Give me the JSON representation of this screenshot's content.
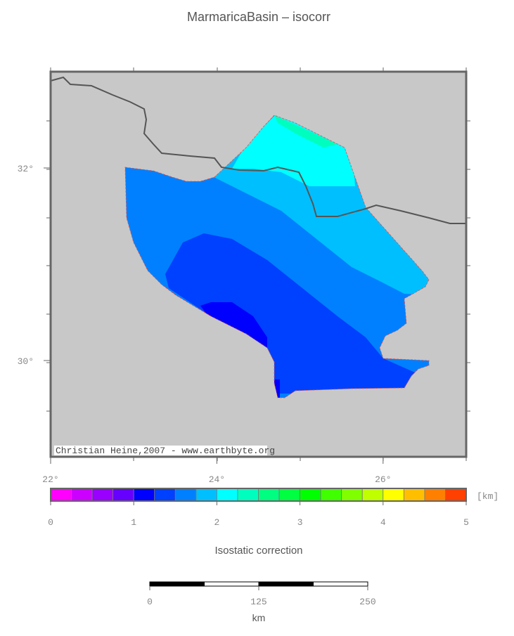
{
  "title": "MarmaricaBasin – isocorr",
  "map": {
    "xlim": [
      22,
      27
    ],
    "ylim": [
      29,
      33
    ],
    "xticks": [
      {
        "value": 22,
        "label": "22°"
      },
      {
        "value": 24,
        "label": "24°"
      },
      {
        "value": 26,
        "label": "26°"
      }
    ],
    "yticks": [
      {
        "value": 30,
        "label": "30°"
      },
      {
        "value": 32,
        "label": "32°"
      }
    ],
    "credit": "Christian Heine,2007 - www.earthbyte.org"
  },
  "colorbar": {
    "title": "Isostatic correction",
    "unit": "[km]",
    "lim": [
      0,
      5
    ],
    "ticks": [
      0,
      1,
      2,
      3,
      4,
      5
    ],
    "colors": [
      "#ff00ff",
      "#cc00ff",
      "#9900ff",
      "#6600ff",
      "#0000ff",
      "#0040ff",
      "#0080ff",
      "#00bfff",
      "#00ffff",
      "#00ffbf",
      "#00ff80",
      "#00ff40",
      "#00ff00",
      "#40ff00",
      "#80ff00",
      "#bfff00",
      "#ffff00",
      "#ffbf00",
      "#ff8000",
      "#ff4000"
    ]
  },
  "scalebar": {
    "unit": "km",
    "lim": [
      0,
      250
    ],
    "ticks": [
      0,
      125,
      250
    ]
  }
}
